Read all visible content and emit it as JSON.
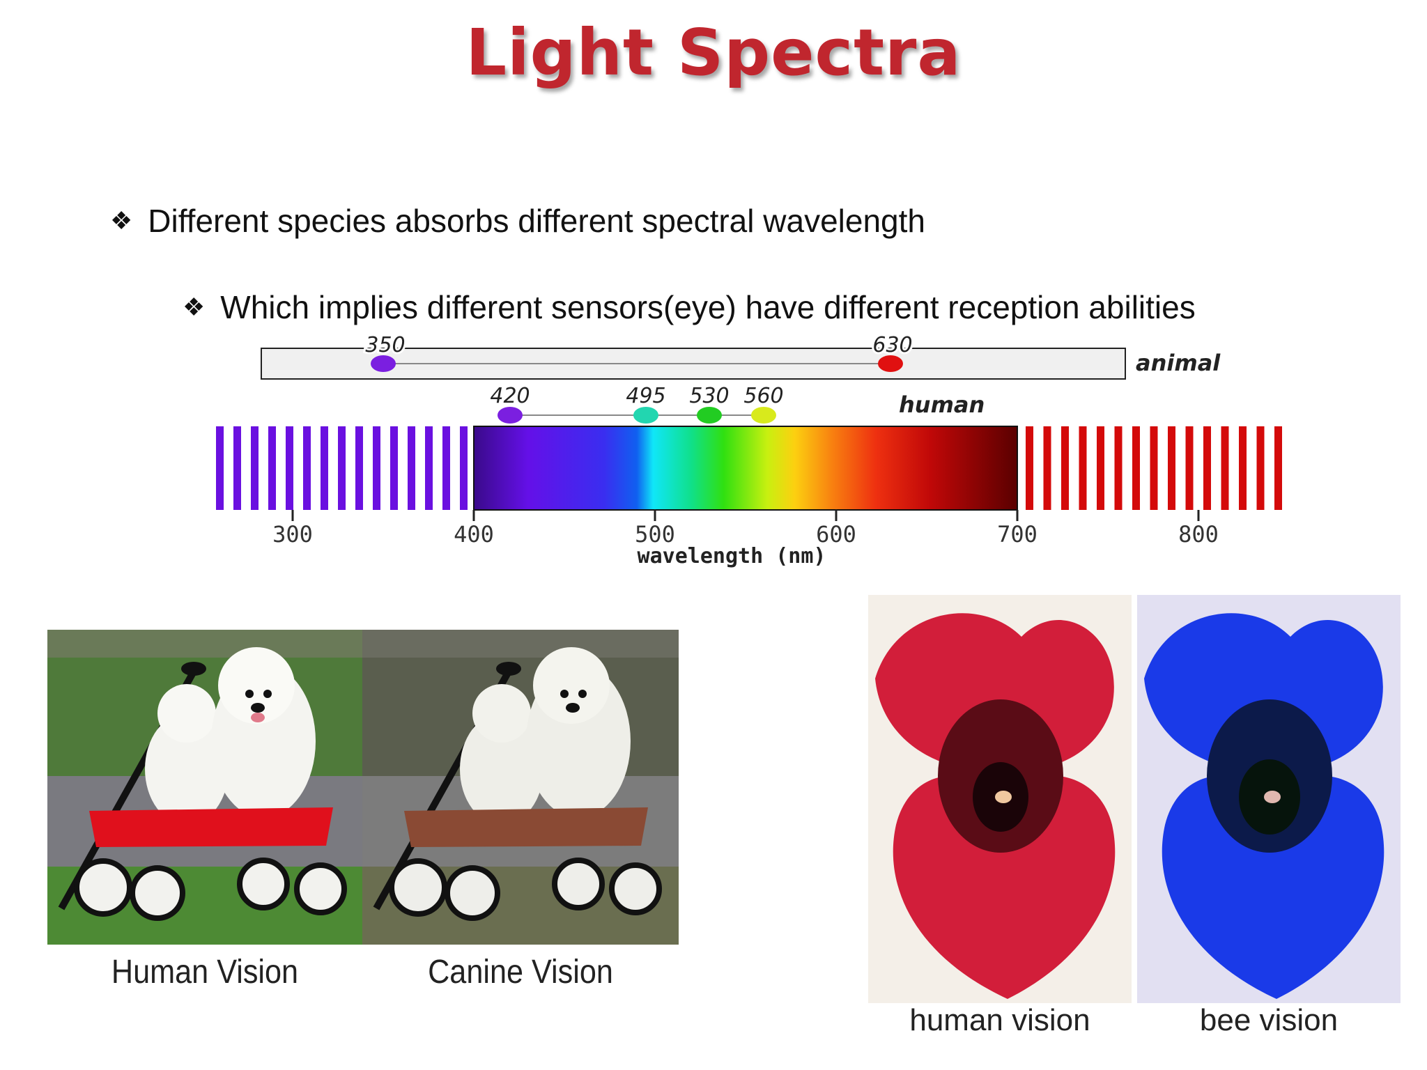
{
  "slide": {
    "title": "Light Spectra",
    "bullets": [
      "Different species absorbs different spectral wavelength",
      "Which implies different sensors(eye) have different reception abilities"
    ]
  },
  "spectrum": {
    "animal_label": "animal",
    "human_label": "human",
    "axis_label": "wavelength (nm)",
    "ticks": [
      "300",
      "400",
      "500",
      "600",
      "700",
      "800"
    ],
    "animal_range": {
      "min": 350,
      "max": 630,
      "min_label": "350",
      "max_label": "630",
      "min_color": "#7b1fe0",
      "max_color": "#e01010"
    },
    "human_receptors": [
      {
        "label": "420",
        "value": 420,
        "color": "#7b1fe0"
      },
      {
        "label": "495",
        "value": 495,
        "color": "#22d6b0"
      },
      {
        "label": "530",
        "value": 530,
        "color": "#22cc22"
      },
      {
        "label": "560",
        "value": 560,
        "color": "#d8ea1c"
      }
    ],
    "colors": {
      "uv_stripes": "#6a10e0",
      "ir_stripes": "#d40a0a"
    }
  },
  "dogs": {
    "captions": [
      "Human Vision",
      "Canine Vision"
    ],
    "wagon_colors": [
      "#e0101c",
      "#8a4a34"
    ]
  },
  "flowers": {
    "captions": [
      "human vision",
      "bee vision"
    ],
    "petal_colors": [
      "#d21e3a",
      "#1a3ae8"
    ]
  }
}
